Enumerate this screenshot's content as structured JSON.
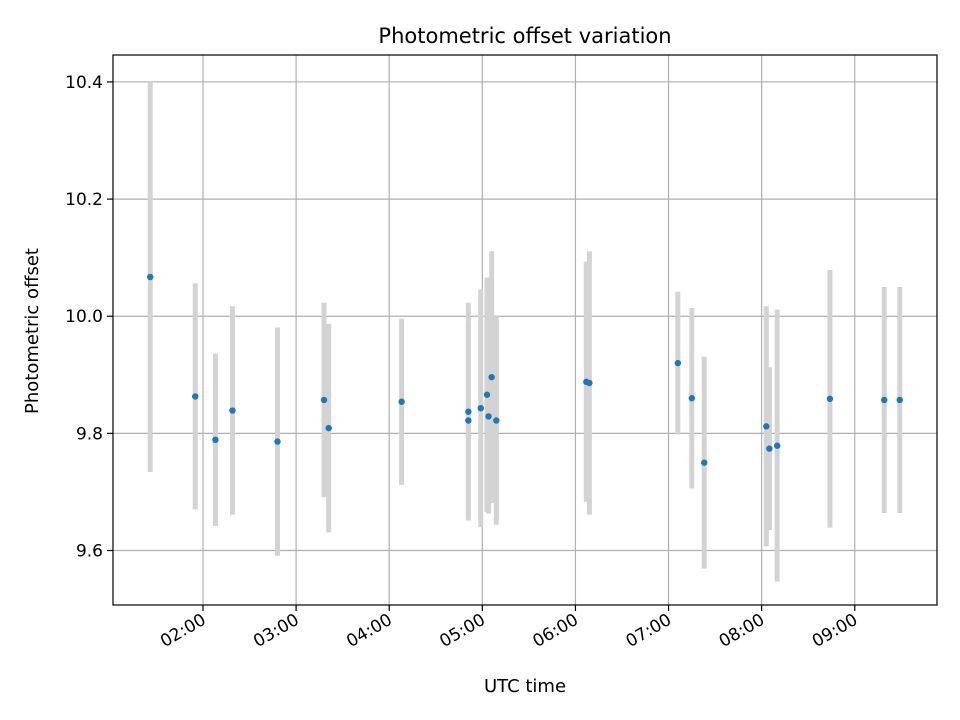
{
  "chart_data": {
    "type": "scatter",
    "title": "Photometric offset variation",
    "xlabel": "UTC time",
    "ylabel": "Photometric offset",
    "x_unit": "hours UTC",
    "xlim": [
      "01:02",
      "09:53"
    ],
    "ylim": [
      9.507,
      10.446
    ],
    "xticks": [
      "02:00",
      "03:00",
      "04:00",
      "05:00",
      "06:00",
      "07:00",
      "08:00",
      "09:00"
    ],
    "yticks": [
      "9.6",
      "9.8",
      "10.0",
      "10.2",
      "10.4"
    ],
    "grid": true,
    "legend": "none",
    "colors": {
      "marker": "#1f77b4",
      "errorbar": "#d3d3d3",
      "grid": "#b0b0b0"
    },
    "points": [
      {
        "time": "01:26",
        "y": 10.067,
        "yerr": 0.333
      },
      {
        "time": "01:55",
        "y": 9.863,
        "yerr": 0.193
      },
      {
        "time": "02:08",
        "y": 9.789,
        "yerr": 0.147
      },
      {
        "time": "02:19",
        "y": 9.839,
        "yerr": 0.178
      },
      {
        "time": "02:48",
        "y": 9.786,
        "yerr": 0.195
      },
      {
        "time": "03:18",
        "y": 9.857,
        "yerr": 0.166
      },
      {
        "time": "03:21",
        "y": 9.809,
        "yerr": 0.178
      },
      {
        "time": "04:08",
        "y": 9.854,
        "yerr": 0.142
      },
      {
        "time": "04:51",
        "y": 9.837,
        "yerr": 0.186
      },
      {
        "time": "04:51",
        "y": 9.822,
        "yerr": 0.166
      },
      {
        "time": "04:59",
        "y": 9.843,
        "yerr": 0.203
      },
      {
        "time": "05:03",
        "y": 9.866,
        "yerr": 0.2
      },
      {
        "time": "05:04",
        "y": 9.829,
        "yerr": 0.166
      },
      {
        "time": "05:06",
        "y": 9.896,
        "yerr": 0.215
      },
      {
        "time": "05:09",
        "y": 9.822,
        "yerr": 0.178
      },
      {
        "time": "06:07",
        "y": 9.888,
        "yerr": 0.205
      },
      {
        "time": "06:09",
        "y": 9.886,
        "yerr": 0.225
      },
      {
        "time": "07:06",
        "y": 9.92,
        "yerr": 0.122
      },
      {
        "time": "07:15",
        "y": 9.86,
        "yerr": 0.154
      },
      {
        "time": "07:23",
        "y": 9.75,
        "yerr": 0.181
      },
      {
        "time": "08:03",
        "y": 9.812,
        "yerr": 0.205
      },
      {
        "time": "08:05",
        "y": 9.774,
        "yerr": 0.139
      },
      {
        "time": "08:10",
        "y": 9.779,
        "yerr": 0.232
      },
      {
        "time": "08:44",
        "y": 9.859,
        "yerr": 0.22
      },
      {
        "time": "09:19",
        "y": 9.857,
        "yerr": 0.193
      },
      {
        "time": "09:29",
        "y": 9.857,
        "yerr": 0.193
      }
    ]
  }
}
